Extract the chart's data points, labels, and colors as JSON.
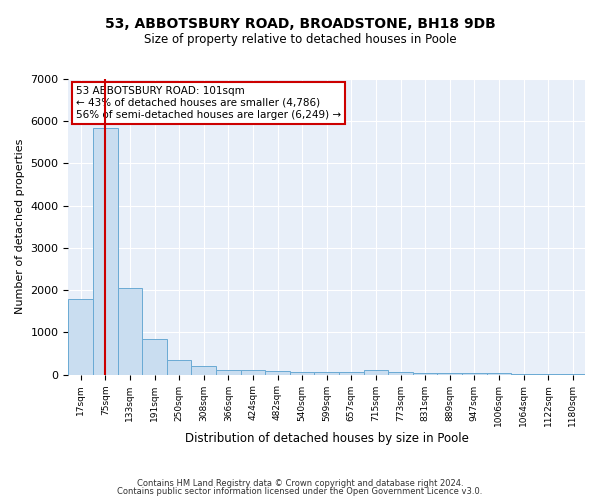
{
  "title": "53, ABBOTSBURY ROAD, BROADSTONE, BH18 9DB",
  "subtitle": "Size of property relative to detached houses in Poole",
  "xlabel": "Distribution of detached houses by size in Poole",
  "ylabel": "Number of detached properties",
  "bar_color": "#c9ddf0",
  "bar_edge_color": "#6aaad4",
  "background_color": "#e8eff9",
  "grid_color": "#ffffff",
  "categories": [
    "17sqm",
    "75sqm",
    "133sqm",
    "191sqm",
    "250sqm",
    "308sqm",
    "366sqm",
    "424sqm",
    "482sqm",
    "540sqm",
    "599sqm",
    "657sqm",
    "715sqm",
    "773sqm",
    "831sqm",
    "889sqm",
    "947sqm",
    "1006sqm",
    "1064sqm",
    "1122sqm",
    "1180sqm"
  ],
  "values": [
    1780,
    5850,
    2060,
    840,
    340,
    200,
    110,
    100,
    75,
    60,
    55,
    50,
    110,
    50,
    45,
    40,
    35,
    30,
    25,
    20,
    15
  ],
  "red_line_x": 1,
  "ylim": [
    0,
    7000
  ],
  "yticks": [
    0,
    1000,
    2000,
    3000,
    4000,
    5000,
    6000,
    7000
  ],
  "annotation_text": "53 ABBOTSBURY ROAD: 101sqm\n← 43% of detached houses are smaller (4,786)\n56% of semi-detached houses are larger (6,249) →",
  "annotation_box_color": "#ffffff",
  "annotation_border_color": "#cc0000",
  "footer_line1": "Contains HM Land Registry data © Crown copyright and database right 2024.",
  "footer_line2": "Contains public sector information licensed under the Open Government Licence v3.0.",
  "red_line_color": "#cc0000",
  "figwidth": 6.0,
  "figheight": 5.0,
  "dpi": 100
}
